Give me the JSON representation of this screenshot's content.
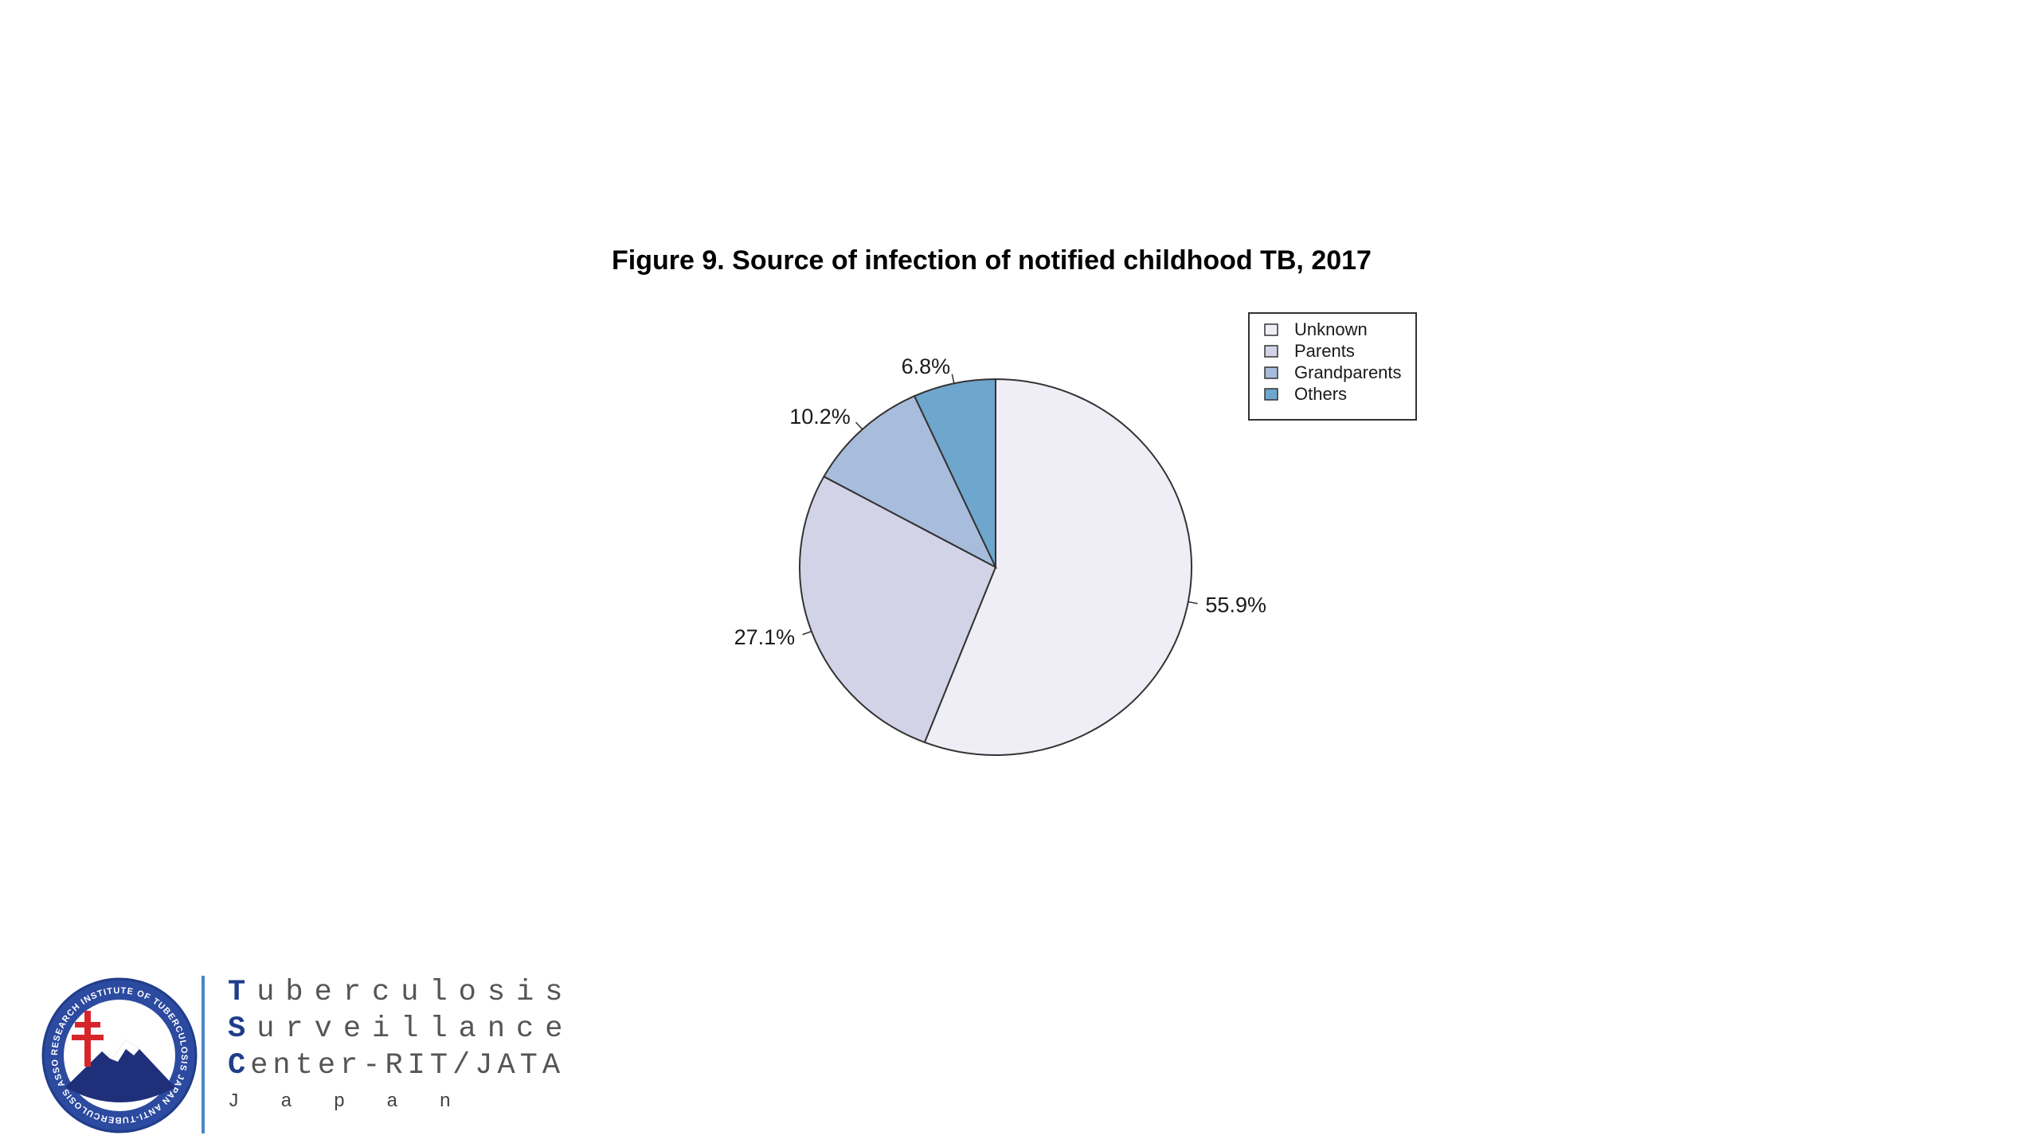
{
  "chart_data": {
    "type": "pie",
    "title": "Figure 9. Source of infection of notified childhood TB, 2017",
    "slices": [
      {
        "name": "Unknown",
        "value": 55.9,
        "label": "55.9%",
        "color": "#efedf5"
      },
      {
        "name": "Parents",
        "value": 27.1,
        "label": "27.1%",
        "color": "#d3d3e8"
      },
      {
        "name": "Grandparents",
        "value": 10.2,
        "label": "10.2%",
        "color": "#a8bcdc"
      },
      {
        "name": "Others",
        "value": 6.8,
        "label": "6.8%",
        "color": "#6fa6cd"
      }
    ],
    "start": "top",
    "direction": "clockwise",
    "legend": {
      "position": "top-right",
      "entries": [
        "Unknown",
        "Parents",
        "Grandparents",
        "Others"
      ]
    }
  },
  "logo": {
    "line1_initial": "T",
    "line1_rest": "uberculosis",
    "line2_initial": "S",
    "line2_rest": "urveillance",
    "line3_initial": "C",
    "line3_rest": "enter-RIT/JATA",
    "line4": "Japan",
    "seal_text": "RESEARCH INSTITUTE OF TUBERCULOSIS JAPAN ANTI-TUBERCULOSIS ASSOCIATION",
    "colors": {
      "brand_blue": "#1f3d8a",
      "divider_blue": "#4b86c5",
      "cross_red": "#d7262b"
    }
  }
}
